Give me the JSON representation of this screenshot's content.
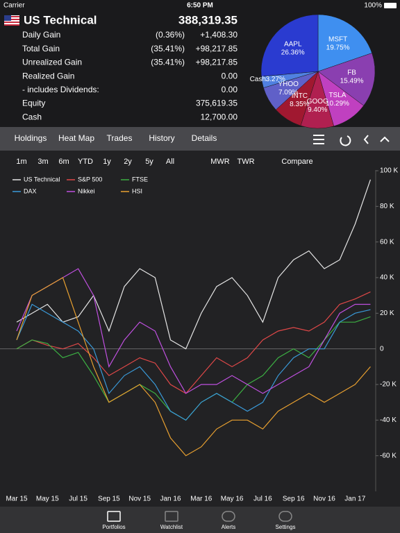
{
  "status": {
    "carrier": "Carrier",
    "time": "6:50 PM",
    "battery": "100%"
  },
  "header": {
    "title": "US Technical",
    "total": "388,319.35",
    "rows": [
      {
        "label": "Daily Gain",
        "pct": "(0.36%)",
        "value": "+1,408.30"
      },
      {
        "label": "Total Gain",
        "pct": "(35.41%)",
        "value": "+98,217.85"
      },
      {
        "label": "Unrealized Gain",
        "pct": "(35.41%)",
        "value": "+98,217.85"
      },
      {
        "label": "Realized Gain",
        "value": "0.00"
      },
      {
        "label": " - includes Dividends:",
        "value": "0.00"
      },
      {
        "label": "Equity",
        "value": "375,619.35"
      },
      {
        "label": "Cash",
        "value": "12,700.00"
      }
    ]
  },
  "pie": {
    "type": "pie",
    "categories": [
      "MSFT",
      "FB",
      "TSLA",
      "GOOG",
      "INTC",
      "YHOO",
      "Cash",
      "AAPL"
    ],
    "values": [
      19.75,
      15.49,
      10.29,
      9.4,
      8.35,
      7.09,
      3.27,
      26.36
    ],
    "value_labels": [
      "19.75%",
      "15.49%",
      "10.29%",
      "9.40%",
      "8.35%",
      "7.09%",
      "3.27%",
      "26.36%"
    ],
    "colors": [
      "#3f8ff0",
      "#8a3fb0",
      "#c040c0",
      "#b02050",
      "#a01830",
      "#6060c8",
      "#5080e0",
      "#2a3bd0"
    ]
  },
  "tabs": {
    "items": [
      "Holdings",
      "Heat Map",
      "Trades",
      "History",
      "Details"
    ],
    "selected": 3
  },
  "ranges": {
    "items": [
      "1m",
      "3m",
      "6m",
      "YTD",
      "1y",
      "2y",
      "5y",
      "All"
    ],
    "selected": 5,
    "modes": [
      "MWR",
      "TWR"
    ],
    "compare": "Compare"
  },
  "chart_data": {
    "type": "line",
    "categories": [
      "Mar 15",
      null,
      "May 15",
      null,
      "Jul 15",
      null,
      "Sep 15",
      null,
      "Nov 15",
      null,
      "Jan 16",
      null,
      "Mar 16",
      null,
      "May 16",
      null,
      "Jul 16",
      null,
      "Sep 16",
      null,
      "Nov 16",
      null,
      "Jan 17",
      null
    ],
    "ylim": [
      -80,
      100
    ],
    "yticks": [
      {
        "value": 100,
        "label": "100 K"
      },
      {
        "value": 80,
        "label": "80 K"
      },
      {
        "value": 60,
        "label": "60 K"
      },
      {
        "value": 40,
        "label": "40 K"
      },
      {
        "value": 20,
        "label": "20 K"
      },
      0,
      {
        "value": -20,
        "label": "-20 K"
      },
      {
        "value": -40,
        "label": "-40 K"
      },
      {
        "value": -60,
        "label": "-60 K"
      }
    ],
    "series": [
      {
        "name": "US Technical",
        "color": "#e6e6e6",
        "values": [
          15,
          20,
          25,
          15,
          18,
          30,
          10,
          35,
          45,
          40,
          5,
          0,
          20,
          35,
          40,
          30,
          15,
          40,
          50,
          55,
          45,
          50,
          70,
          95
        ]
      },
      {
        "name": "S&P 500",
        "color": "#e04848",
        "values": [
          0,
          5,
          2,
          0,
          3,
          -5,
          -15,
          -10,
          -5,
          -8,
          -20,
          -25,
          -15,
          -5,
          -10,
          -5,
          5,
          10,
          12,
          10,
          15,
          25,
          28,
          32
        ]
      },
      {
        "name": "FTSE",
        "color": "#3cb043",
        "values": [
          0,
          5,
          3,
          -5,
          -2,
          -15,
          -30,
          -25,
          -20,
          -25,
          -35,
          -40,
          -30,
          -25,
          -30,
          -20,
          -15,
          -5,
          0,
          -5,
          5,
          15,
          15,
          18
        ]
      },
      {
        "name": "DAX",
        "color": "#3a9ad9",
        "values": [
          5,
          25,
          20,
          15,
          10,
          0,
          -25,
          -15,
          -10,
          -20,
          -35,
          -40,
          -30,
          -25,
          -30,
          -35,
          -30,
          -15,
          -5,
          0,
          0,
          15,
          20,
          22
        ]
      },
      {
        "name": "Nikkei",
        "color": "#c050e0",
        "values": [
          10,
          30,
          35,
          40,
          45,
          30,
          -10,
          5,
          15,
          10,
          -10,
          -25,
          -20,
          -20,
          -15,
          -20,
          -25,
          -20,
          -15,
          -10,
          5,
          20,
          25,
          25
        ]
      },
      {
        "name": "HSI",
        "color": "#e8a030",
        "values": [
          5,
          30,
          35,
          40,
          15,
          -10,
          -30,
          -25,
          -20,
          -30,
          -50,
          -60,
          -55,
          -45,
          -40,
          -40,
          -45,
          -35,
          -30,
          -25,
          -30,
          -25,
          -20,
          -10
        ]
      }
    ]
  },
  "bottom_tabs": {
    "items": [
      "Portfolios",
      "Watchlist",
      "Alerts",
      "Settings"
    ],
    "selected": 0
  }
}
